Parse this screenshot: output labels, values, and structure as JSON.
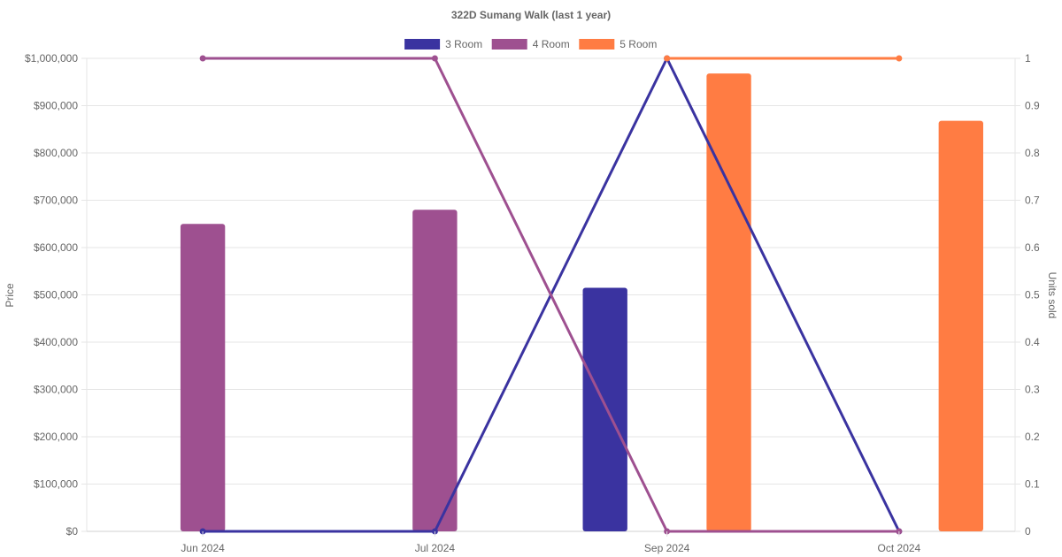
{
  "chart_data": {
    "type": "bar",
    "title": "322D Sumang Walk (last 1 year)",
    "categories": [
      "Jun 2024",
      "Jul 2024",
      "Sep 2024",
      "Oct 2024"
    ],
    "legend_position": "top",
    "grid": true,
    "y_left": {
      "label": "Price",
      "min": 0,
      "max": 1000000,
      "ticks": [
        "$0",
        "$100,000",
        "$200,000",
        "$300,000",
        "$400,000",
        "$500,000",
        "$600,000",
        "$700,000",
        "$800,000",
        "$900,000",
        "$1,000,000"
      ]
    },
    "y_right": {
      "label": "Units sold",
      "min": 0,
      "max": 1,
      "ticks": [
        "0",
        "0.1",
        "0.2",
        "0.3",
        "0.4",
        "0.5",
        "0.6",
        "0.7",
        "0.8",
        "0.9",
        "1"
      ]
    },
    "series": [
      {
        "name": "3 Room",
        "color": "#3a33a0",
        "prices": [
          null,
          null,
          515000,
          null
        ],
        "units": [
          0,
          0,
          1,
          0
        ]
      },
      {
        "name": "4 Room",
        "color": "#9e5090",
        "prices": [
          650000,
          680000,
          null,
          null
        ],
        "units": [
          1,
          1,
          0,
          0
        ]
      },
      {
        "name": "5 Room",
        "color": "#ff7c43",
        "prices": [
          null,
          null,
          968000,
          868000
        ],
        "units": [
          null,
          null,
          1,
          1
        ]
      }
    ]
  }
}
